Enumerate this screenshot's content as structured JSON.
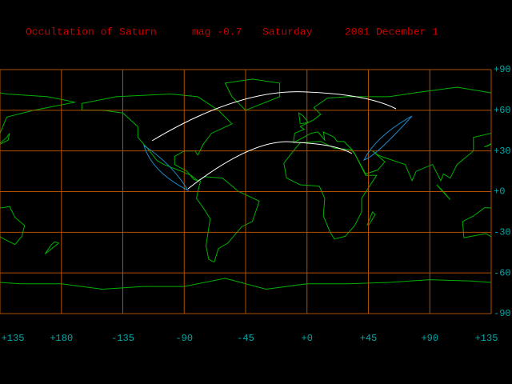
{
  "header": {
    "items": [
      "Occultation of Saturn",
      "mag -0.7",
      "Saturday",
      "2001 December 1"
    ]
  },
  "map": {
    "lat_labels": [
      "+90",
      "+60",
      "+30",
      "+0",
      "-30",
      "-60",
      "-90"
    ],
    "lon_labels": [
      "+135",
      "+180",
      "-135",
      "-90",
      "-45",
      "+0",
      "+45",
      "+90",
      "+135"
    ]
  }
}
